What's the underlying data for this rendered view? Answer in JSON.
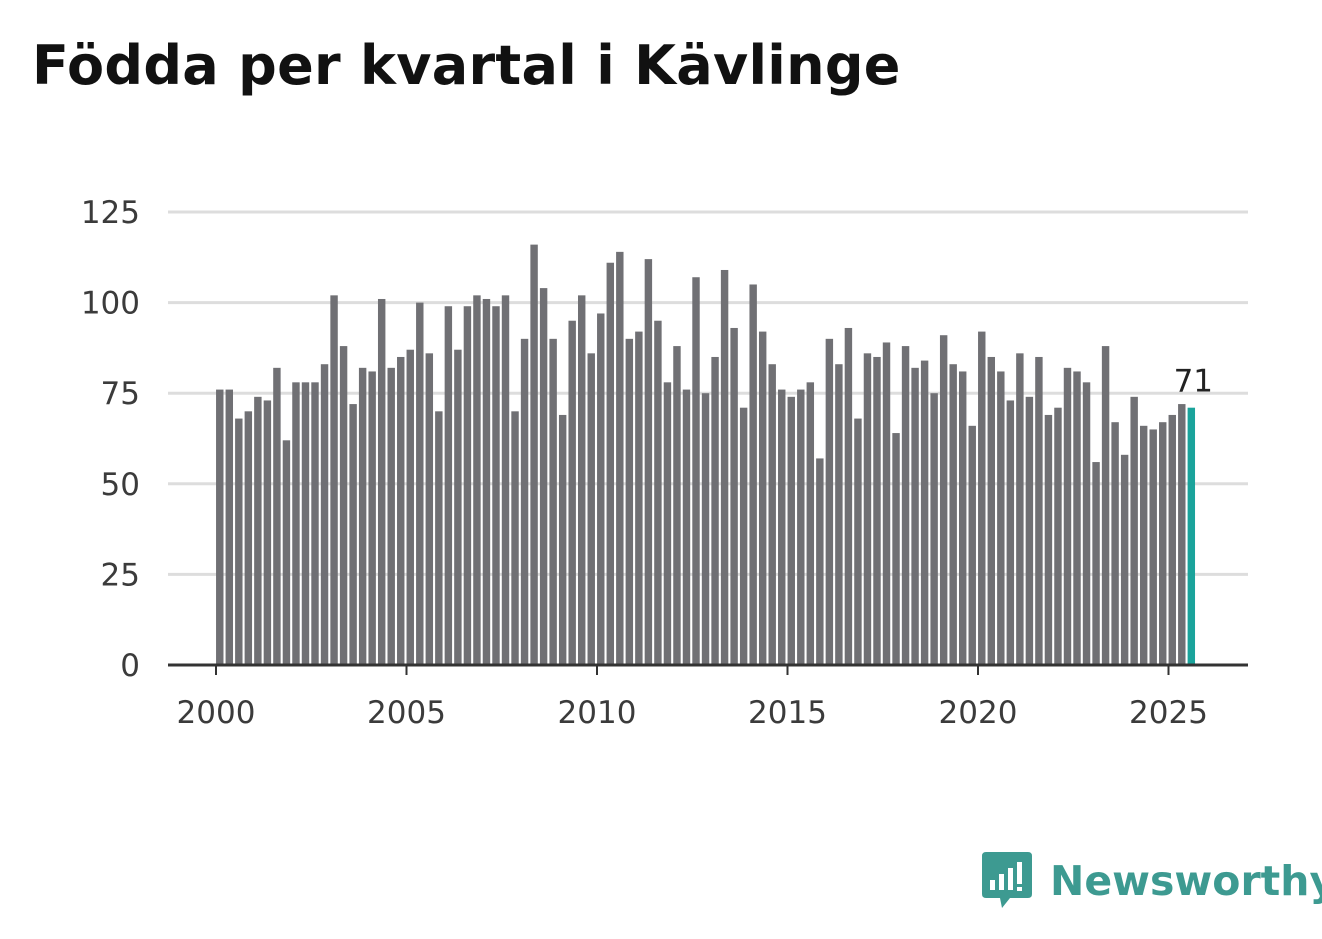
{
  "title": "Födda per kvartal i Kävlinge",
  "brand": {
    "name": "Newsworthy",
    "color": "#3d9a91",
    "icon": "bar-chart-speech-icon"
  },
  "colors": {
    "bar": "#707074",
    "highlight": "#1aa39b",
    "grid": "#dddddd",
    "axis": "#333333"
  },
  "chart_data": {
    "type": "bar",
    "title": "Födda per kvartal i Kävlinge",
    "xlabel": "",
    "ylabel": "",
    "ylim": [
      0,
      125
    ],
    "yticks": [
      0,
      25,
      50,
      75,
      100,
      125
    ],
    "xticks": [
      2000,
      2005,
      2010,
      2015,
      2020,
      2025
    ],
    "start_year": 2000,
    "periods_per_year": 4,
    "grid": true,
    "highlight_last": true,
    "last_value_label": "71",
    "values": [
      76,
      76,
      68,
      70,
      74,
      73,
      82,
      62,
      78,
      78,
      78,
      83,
      102,
      88,
      72,
      82,
      81,
      101,
      82,
      85,
      87,
      100,
      86,
      70,
      99,
      87,
      99,
      102,
      101,
      99,
      102,
      70,
      90,
      116,
      104,
      90,
      69,
      95,
      102,
      86,
      97,
      111,
      114,
      90,
      92,
      112,
      95,
      78,
      88,
      76,
      107,
      75,
      85,
      109,
      93,
      71,
      105,
      92,
      83,
      76,
      74,
      76,
      78,
      57,
      90,
      83,
      93,
      68,
      86,
      85,
      89,
      64,
      88,
      82,
      84,
      75,
      91,
      83,
      81,
      66,
      92,
      85,
      81,
      73,
      86,
      74,
      85,
      69,
      71,
      82,
      81,
      78,
      56,
      88,
      67,
      58,
      74,
      66,
      65,
      67,
      69,
      72,
      71
    ]
  }
}
